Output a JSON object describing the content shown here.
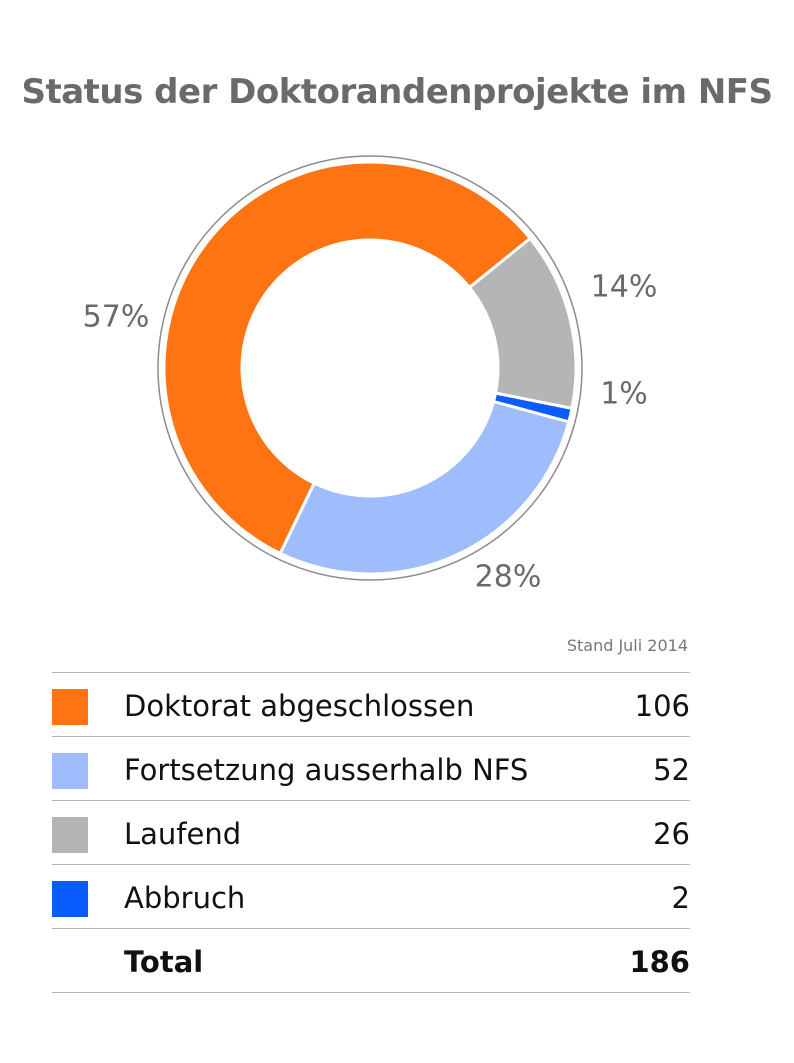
{
  "chart_data": {
    "type": "pie",
    "title": "Status der Doktorandenprojekte im NFS",
    "note": "Stand Juli 2014",
    "categories": [
      "Doktorat abgeschlossen",
      "Fortsetzung ausserhalb NFS",
      "Laufend",
      "Abbruch"
    ],
    "values": [
      106,
      52,
      26,
      2
    ],
    "percent_labels": [
      "57%",
      "28%",
      "14%",
      "1%"
    ],
    "colors": [
      "#ff7412",
      "#9fbdfd",
      "#b5b5b5",
      "#0a5cff"
    ],
    "total_label": "Total",
    "total_value": 186
  }
}
